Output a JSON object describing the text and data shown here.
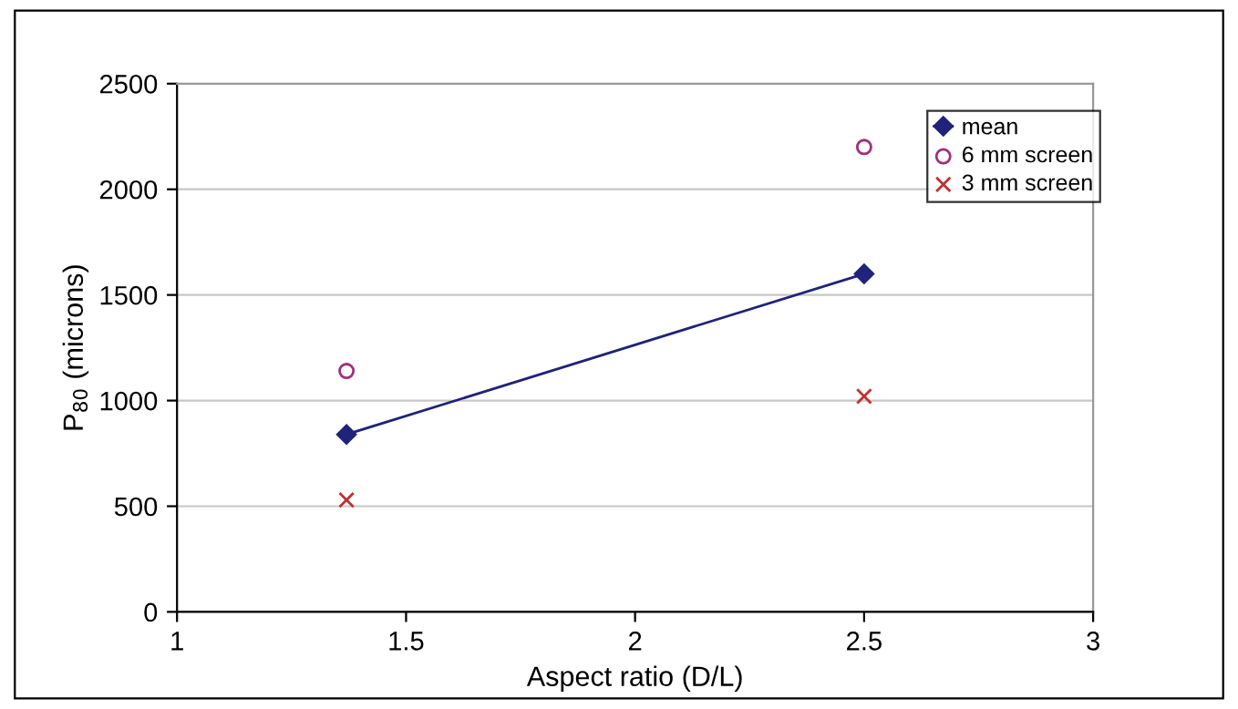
{
  "chart_data": {
    "type": "scatter",
    "xlabel": "Aspect ratio (D/L)",
    "ylabel": "P$_{80}$ (microns)",
    "xlim": [
      1,
      3
    ],
    "xticks": [
      1,
      1.5,
      2,
      2.5,
      3
    ],
    "ylim": [
      0,
      2500
    ],
    "yticks": [
      0,
      500,
      1000,
      1500,
      2000,
      2500
    ],
    "grid": "y",
    "legend": "top right",
    "x": [
      1.37,
      2.5
    ],
    "series": [
      {
        "name": "mean",
        "type": "line",
        "color": "#1f237a",
        "marker": "diamond",
        "line_style": "solid",
        "values": [
          840,
          1600
        ]
      },
      {
        "name": "6 mm screen",
        "color": "#a0307a",
        "marker": "circle",
        "values": [
          1140,
          2200
        ]
      },
      {
        "name": "3 mm screen",
        "color": "#c03030",
        "marker": "cross",
        "values": [
          530,
          1020
        ]
      }
    ]
  }
}
